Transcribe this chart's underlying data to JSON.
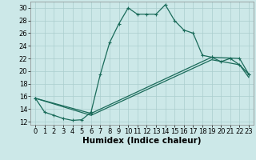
{
  "title": "",
  "xlabel": "Humidex (Indice chaleur)",
  "ylabel": "",
  "bg_color": "#cce8e8",
  "grid_color": "#aacece",
  "line_color": "#1a6b5a",
  "xlim": [
    -0.5,
    23.5
  ],
  "ylim": [
    11.5,
    31
  ],
  "xticks": [
    0,
    1,
    2,
    3,
    4,
    5,
    6,
    7,
    8,
    9,
    10,
    11,
    12,
    13,
    14,
    15,
    16,
    17,
    18,
    19,
    20,
    21,
    22,
    23
  ],
  "yticks": [
    12,
    14,
    16,
    18,
    20,
    22,
    24,
    26,
    28,
    30
  ],
  "line1_x": [
    0,
    1,
    2,
    3,
    4,
    5,
    6,
    7,
    8,
    9,
    10,
    11,
    12,
    13,
    14,
    15,
    16,
    17,
    18,
    19,
    20,
    21,
    22,
    23
  ],
  "line1_y": [
    15.7,
    13.5,
    13.0,
    12.5,
    12.2,
    12.3,
    13.5,
    19.5,
    24.5,
    27.5,
    30.0,
    29.0,
    29.0,
    29.0,
    30.5,
    28.0,
    26.5,
    26.0,
    22.5,
    22.2,
    21.5,
    22.0,
    21.0,
    19.5
  ],
  "line2_x": [
    0,
    6,
    19,
    22,
    23
  ],
  "line2_y": [
    15.7,
    13.3,
    22.2,
    22.0,
    19.5
  ],
  "line3_x": [
    0,
    6,
    19,
    22,
    23
  ],
  "line3_y": [
    15.7,
    13.0,
    21.8,
    21.0,
    19.0
  ],
  "fontsize_xlabel": 7.5,
  "fontsize_ticks": 6
}
